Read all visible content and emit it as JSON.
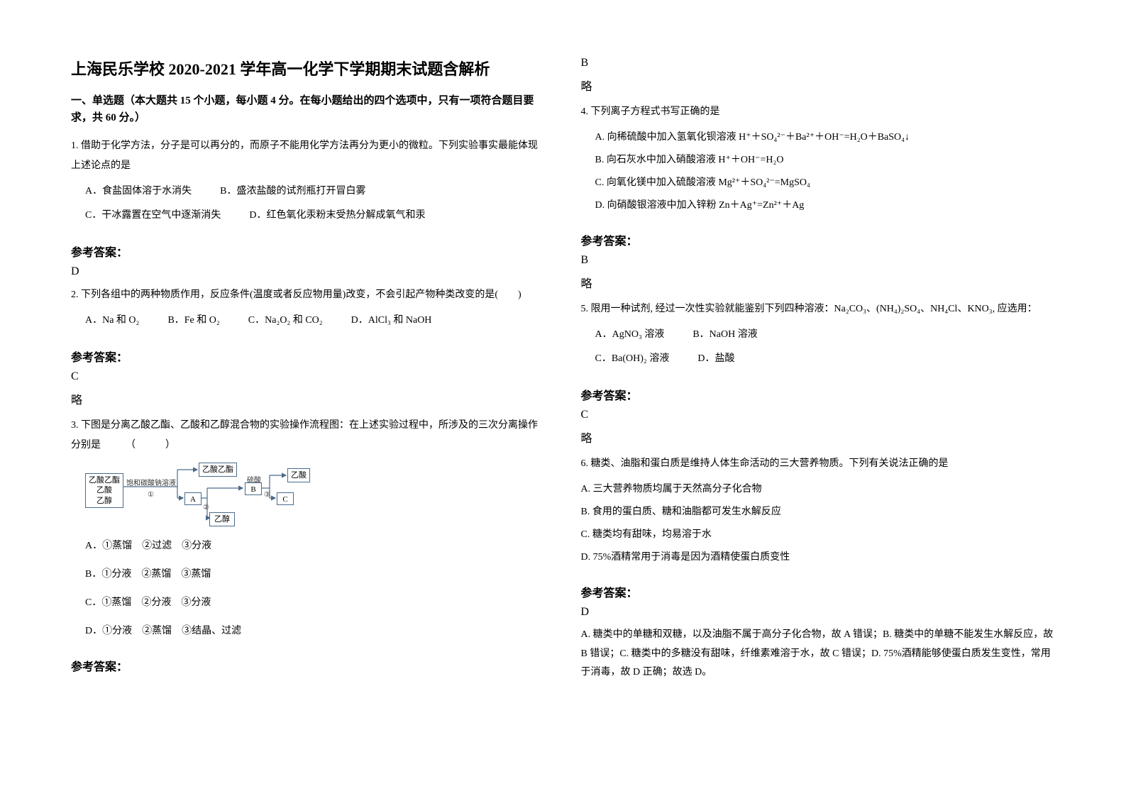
{
  "title": "上海民乐学校 2020-2021 学年高一化学下学期期末试题含解析",
  "section_header": "一、单选题（本大题共 15 个小题，每小题 4 分。在每小题给出的四个选项中，只有一项符合题目要求，共 60 分。）",
  "q1": {
    "text": "1. 借助于化学方法，分子是可以再分的，而原子不能用化学方法再分为更小的微粒。下列实验事实最能体现上述论点的是",
    "optA": "A．食盐固体溶于水消失",
    "optB": "B．盛浓盐酸的试剂瓶打开冒白雾",
    "optC": "C．干冰露置在空气中逐渐消失",
    "optD": "D．红色氧化汞粉末受热分解成氧气和汞",
    "answer_label": "参考答案：",
    "answer": "D"
  },
  "q2": {
    "text": "2. 下列各组中的两种物质作用，反应条件(温度或者反应物用量)改变，不会引起产物种类改变的是(　　)",
    "optA": "A．Na 和 O₂",
    "optB": "B．Fe 和 O₂",
    "optC": "C．Na₂O₂ 和 CO₂",
    "optD": "D．AlCl₃ 和 NaOH",
    "answer_label": "参考答案：",
    "answer": "C",
    "note": "略"
  },
  "q3": {
    "text": "3. 下图是分离乙酸乙酯、乙酸和乙醇混合物的实验操作流程图：在上述实验过程中，所涉及的三次分离操作分别是　　　（　　　）",
    "diagram": {
      "box_left": "乙酸乙酯\n乙酸\n乙醇",
      "label1": "饱和碳酸钠溶液",
      "circ1": "①",
      "box_midtop": "乙酸乙酯",
      "box_a": "A",
      "circ2": "②",
      "box_b": "B",
      "label2": "硫酸",
      "circ3": "③",
      "box_c": "C",
      "box_right": "乙酸",
      "box_bottom": "乙醇"
    },
    "optA": "A．①蒸馏　②过滤　③分液",
    "optB": "B．①分液　②蒸馏　③蒸馏",
    "optC": "C．①蒸馏　②分液　③分液",
    "optD": "D．①分液　②蒸馏　③结晶、过滤",
    "answer_label": "参考答案：",
    "answer": "B",
    "note": "略"
  },
  "q4": {
    "text": "4. 下列离子方程式书写正确的是",
    "optA": "A. 向稀硫酸中加入氢氧化钡溶液 H⁺＋SO₄²⁻＋Ba²⁺＋OH⁻=H₂O＋BaSO₄↓",
    "optB": "B. 向石灰水中加入硝酸溶液 H⁺＋OH⁻=H₂O",
    "optC": "C. 向氧化镁中加入硫酸溶液 Mg²⁺＋SO₄²⁻=MgSO₄",
    "optD": "D. 向硝酸银溶液中加入锌粉 Zn＋Ag⁺=Zn²⁺＋Ag",
    "answer_label": "参考答案：",
    "answer": "B",
    "note": "略"
  },
  "q5": {
    "text": "5. 限用一种试剂, 经过一次性实验就能鉴别下列四种溶液：Na₂CO₃、(NH₄)₂SO₄、NH₄Cl、KNO₃, 应选用：",
    "optA": "A．AgNO₃ 溶液",
    "optB": "B．NaOH 溶液",
    "optC": "C．Ba(OH)₂ 溶液",
    "optD": "D．盐酸",
    "answer_label": "参考答案：",
    "answer": "C",
    "note": "略"
  },
  "q6": {
    "text": "6. 糖类、油脂和蛋白质是维持人体生命活动的三大营养物质。下列有关说法正确的是",
    "optA": "A. 三大营养物质均属于天然高分子化合物",
    "optB": "B. 食用的蛋白质、糖和油脂都可发生水解反应",
    "optC": "C. 糖类均有甜味，均易溶于水",
    "optD": "D. 75%酒精常用于消毒是因为酒精使蛋白质变性",
    "answer_label": "参考答案：",
    "answer": "D",
    "explanation": "A. 糖类中的单糖和双糖，以及油脂不属于高分子化合物，故 A 错误；B. 糖类中的单糖不能发生水解反应，故 B 错误；C. 糖类中的多糖没有甜味，纤维素难溶于水，故 C 错误；D. 75%酒精能够使蛋白质发生变性，常用于消毒，故 D 正确；故选 D。"
  }
}
